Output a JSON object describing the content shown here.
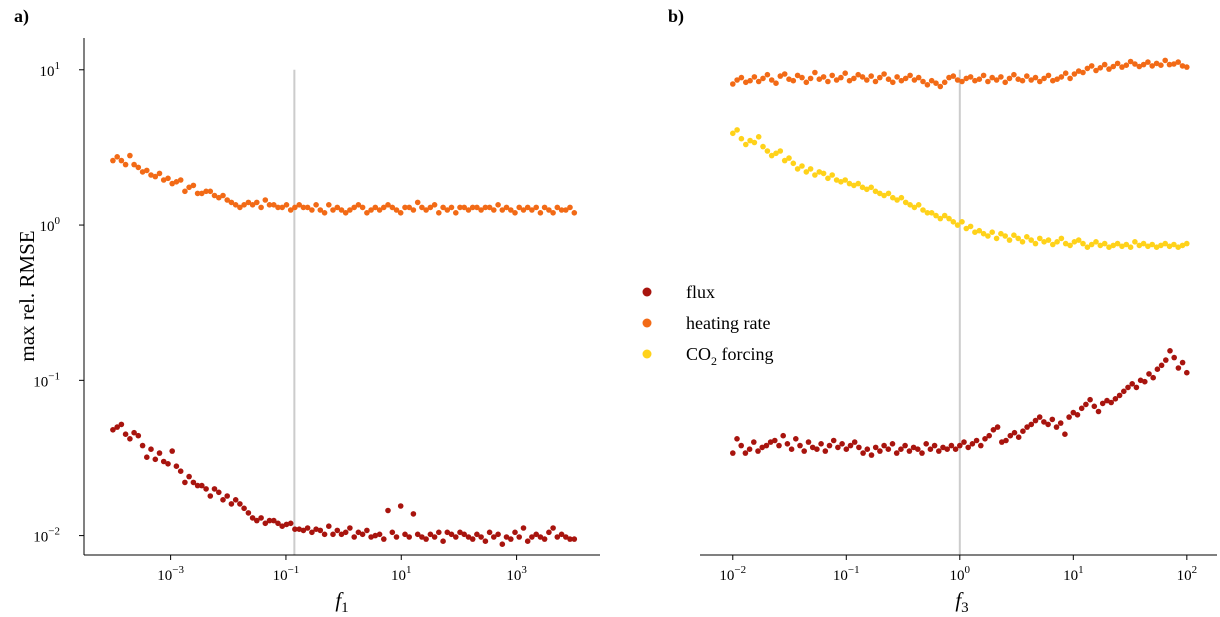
{
  "colors": {
    "flux": "#a8140e",
    "heating": "#f26a16",
    "co2": "#ffd21a",
    "refline": "#cccccc"
  },
  "legend": {
    "entries": [
      {
        "label": "flux",
        "color": "#a8140e"
      },
      {
        "label": "heating rate",
        "color": "#f26a16"
      },
      {
        "label": "CO",
        "sub": "2",
        "suffix": " forcing",
        "color": "#ffd21a"
      }
    ]
  },
  "chart_data": [
    {
      "type": "scatter",
      "panel_label": "a)",
      "xlabel": "f",
      "xlabel_sub": "1",
      "ylabel": "max rel. RMSE",
      "xscale": "log",
      "yscale": "log",
      "xlim": [
        4e-05,
        22000
      ],
      "ylim": [
        0.0075,
        17
      ],
      "xticks": [
        {
          "value": 0.001,
          "base": "10",
          "exp": "−3"
        },
        {
          "value": 0.1,
          "base": "10",
          "exp": "−1"
        },
        {
          "value": 10,
          "base": "10",
          "exp": "1"
        },
        {
          "value": 1000,
          "base": "10",
          "exp": "3"
        }
      ],
      "yticks": [
        {
          "value": 0.01,
          "base": "10",
          "exp": "−2"
        },
        {
          "value": 0.1,
          "base": "10",
          "exp": "−1"
        },
        {
          "value": 1,
          "base": "10",
          "exp": "0"
        },
        {
          "value": 10,
          "base": "10",
          "exp": "1"
        }
      ],
      "vline": {
        "x": 0.14,
        "ymin": 0.0075,
        "ymax": 10
      },
      "series": [
        {
          "key": "heating",
          "name": "heating rate",
          "x_range": [
            0.0001,
            10000
          ],
          "values": [
            2.6,
            2.75,
            2.6,
            2.45,
            2.8,
            2.45,
            2.35,
            2.2,
            2.25,
            2.1,
            2.05,
            2.15,
            1.95,
            2.0,
            1.85,
            1.9,
            1.95,
            1.65,
            1.75,
            1.8,
            1.6,
            1.6,
            1.65,
            1.65,
            1.55,
            1.5,
            1.55,
            1.45,
            1.4,
            1.35,
            1.3,
            1.35,
            1.4,
            1.35,
            1.4,
            1.3,
            1.45,
            1.35,
            1.35,
            1.3,
            1.3,
            1.35,
            1.25,
            1.3,
            1.35,
            1.3,
            1.3,
            1.25,
            1.35,
            1.25,
            1.2,
            1.35,
            1.25,
            1.3,
            1.25,
            1.2,
            1.25,
            1.3,
            1.35,
            1.3,
            1.2,
            1.25,
            1.3,
            1.25,
            1.3,
            1.35,
            1.3,
            1.25,
            1.2,
            1.3,
            1.3,
            1.25,
            1.4,
            1.3,
            1.25,
            1.3,
            1.35,
            1.2,
            1.3,
            1.25,
            1.3,
            1.2,
            1.3,
            1.3,
            1.25,
            1.3,
            1.3,
            1.25,
            1.3,
            1.3,
            1.25,
            1.35,
            1.25,
            1.3,
            1.25,
            1.2,
            1.3,
            1.25,
            1.3,
            1.25,
            1.3,
            1.2,
            1.3,
            1.25,
            1.2,
            1.3,
            1.25,
            1.25,
            1.3,
            1.2
          ]
        },
        {
          "key": "flux",
          "name": "flux",
          "x_range": [
            0.0001,
            10000
          ],
          "values": [
            0.048,
            0.05,
            0.052,
            0.045,
            0.042,
            0.046,
            0.044,
            0.038,
            0.032,
            0.036,
            0.031,
            0.034,
            0.03,
            0.029,
            0.035,
            0.028,
            0.026,
            0.022,
            0.024,
            0.022,
            0.021,
            0.021,
            0.02,
            0.018,
            0.02,
            0.019,
            0.017,
            0.018,
            0.016,
            0.017,
            0.016,
            0.015,
            0.014,
            0.013,
            0.0125,
            0.013,
            0.012,
            0.0125,
            0.0125,
            0.012,
            0.0115,
            0.0118,
            0.012,
            0.011,
            0.011,
            0.0108,
            0.0112,
            0.0105,
            0.011,
            0.0108,
            0.0102,
            0.0115,
            0.0102,
            0.0108,
            0.0102,
            0.0105,
            0.0112,
            0.0098,
            0.0105,
            0.0102,
            0.0108,
            0.0098,
            0.01,
            0.0102,
            0.0095,
            0.0145,
            0.0105,
            0.0098,
            0.0155,
            0.0102,
            0.0098,
            0.0138,
            0.0102,
            0.0098,
            0.0095,
            0.0102,
            0.0098,
            0.0105,
            0.0092,
            0.0105,
            0.0102,
            0.0098,
            0.0105,
            0.0102,
            0.0098,
            0.0095,
            0.0102,
            0.0098,
            0.0092,
            0.0105,
            0.0098,
            0.0102,
            0.0088,
            0.0098,
            0.0095,
            0.0105,
            0.0098,
            0.0112,
            0.0092,
            0.0098,
            0.0102,
            0.0098,
            0.0095,
            0.0105,
            0.0112,
            0.0098,
            0.0102,
            0.0098,
            0.0095,
            0.0095
          ]
        }
      ]
    },
    {
      "type": "scatter",
      "panel_label": "b)",
      "xlabel": "f",
      "xlabel_sub": "3",
      "ylabel": "",
      "xscale": "log",
      "yscale": "log",
      "xlim": [
        0.0063,
        160
      ],
      "ylim": [
        0.0075,
        17
      ],
      "xticks": [
        {
          "value": 0.01,
          "base": "10",
          "exp": "−2"
        },
        {
          "value": 0.1,
          "base": "10",
          "exp": "−1"
        },
        {
          "value": 1,
          "base": "10",
          "exp": "0"
        },
        {
          "value": 10,
          "base": "10",
          "exp": "1"
        },
        {
          "value": 100,
          "base": "10",
          "exp": "2"
        }
      ],
      "yticks": [],
      "vline": {
        "x": 1,
        "ymin": 0.0075,
        "ymax": 10
      },
      "series": [
        {
          "key": "heating",
          "name": "heating rate",
          "x_range": [
            0.01,
            100
          ],
          "values": [
            8.1,
            8.6,
            8.9,
            8.3,
            8.5,
            9.0,
            8.4,
            8.8,
            9.3,
            8.6,
            8.2,
            9.1,
            9.4,
            8.7,
            8.5,
            9.2,
            8.9,
            8.3,
            8.8,
            9.6,
            8.7,
            9.0,
            8.4,
            9.2,
            8.6,
            8.9,
            9.5,
            8.5,
            8.8,
            9.3,
            9.0,
            8.6,
            9.1,
            8.4,
            8.9,
            9.4,
            8.7,
            8.3,
            9.0,
            8.5,
            8.8,
            9.2,
            8.6,
            8.9,
            8.4,
            8.0,
            8.5,
            8.2,
            7.8,
            8.3,
            8.9,
            9.1,
            8.6,
            8.4,
            8.8,
            9.0,
            8.5,
            8.7,
            9.2,
            8.4,
            8.9,
            8.6,
            9.0,
            8.3,
            8.8,
            9.3,
            8.7,
            8.5,
            9.1,
            8.6,
            8.9,
            8.4,
            8.8,
            9.2,
            8.5,
            8.7,
            9.0,
            9.5,
            8.8,
            9.4,
            9.8,
            9.6,
            10.2,
            10.6,
            9.9,
            10.3,
            10.8,
            10.1,
            10.5,
            11.0,
            10.4,
            10.7,
            11.3,
            10.9,
            10.5,
            10.8,
            11.2,
            10.6,
            11.0,
            10.7,
            11.5,
            10.8,
            10.9,
            11.2,
            10.6,
            10.4
          ]
        },
        {
          "key": "co2",
          "name": "CO2 forcing",
          "x_range": [
            0.01,
            100
          ],
          "values": [
            3.9,
            4.1,
            3.6,
            3.3,
            3.5,
            3.4,
            3.7,
            3.2,
            3.0,
            2.8,
            2.9,
            3.0,
            2.6,
            2.7,
            2.5,
            2.3,
            2.4,
            2.2,
            2.3,
            2.1,
            2.2,
            2.15,
            2.0,
            2.1,
            1.95,
            1.9,
            1.95,
            1.85,
            1.8,
            1.85,
            1.75,
            1.7,
            1.75,
            1.65,
            1.6,
            1.55,
            1.6,
            1.5,
            1.45,
            1.5,
            1.4,
            1.35,
            1.3,
            1.35,
            1.25,
            1.2,
            1.2,
            1.15,
            1.1,
            1.15,
            1.1,
            1.05,
            1.0,
            1.05,
            0.95,
            0.98,
            0.9,
            0.92,
            0.88,
            0.85,
            0.9,
            0.82,
            0.88,
            0.85,
            0.8,
            0.86,
            0.82,
            0.78,
            0.84,
            0.8,
            0.76,
            0.82,
            0.78,
            0.8,
            0.75,
            0.78,
            0.82,
            0.76,
            0.74,
            0.78,
            0.8,
            0.76,
            0.72,
            0.75,
            0.78,
            0.74,
            0.76,
            0.72,
            0.74,
            0.76,
            0.73,
            0.75,
            0.72,
            0.78,
            0.74,
            0.76,
            0.73,
            0.75,
            0.72,
            0.74,
            0.76,
            0.73,
            0.75,
            0.72,
            0.74,
            0.76
          ]
        },
        {
          "key": "flux",
          "name": "flux",
          "x_range": [
            0.01,
            100
          ],
          "values": [
            0.034,
            0.042,
            0.038,
            0.034,
            0.036,
            0.04,
            0.035,
            0.037,
            0.038,
            0.04,
            0.041,
            0.038,
            0.044,
            0.039,
            0.036,
            0.042,
            0.038,
            0.035,
            0.04,
            0.037,
            0.036,
            0.039,
            0.035,
            0.038,
            0.041,
            0.037,
            0.039,
            0.036,
            0.038,
            0.04,
            0.037,
            0.034,
            0.036,
            0.033,
            0.037,
            0.035,
            0.038,
            0.036,
            0.039,
            0.034,
            0.036,
            0.038,
            0.035,
            0.037,
            0.036,
            0.034,
            0.039,
            0.036,
            0.038,
            0.035,
            0.037,
            0.036,
            0.038,
            0.036,
            0.038,
            0.04,
            0.037,
            0.039,
            0.041,
            0.038,
            0.042,
            0.044,
            0.048,
            0.05,
            0.04,
            0.041,
            0.044,
            0.046,
            0.043,
            0.047,
            0.05,
            0.052,
            0.055,
            0.058,
            0.054,
            0.052,
            0.056,
            0.05,
            0.053,
            0.045,
            0.058,
            0.062,
            0.06,
            0.066,
            0.07,
            0.075,
            0.068,
            0.063,
            0.071,
            0.074,
            0.072,
            0.076,
            0.08,
            0.085,
            0.09,
            0.095,
            0.09,
            0.1,
            0.098,
            0.11,
            0.104,
            0.118,
            0.125,
            0.135,
            0.155,
            0.14,
            0.12,
            0.13,
            0.112
          ]
        }
      ]
    }
  ]
}
